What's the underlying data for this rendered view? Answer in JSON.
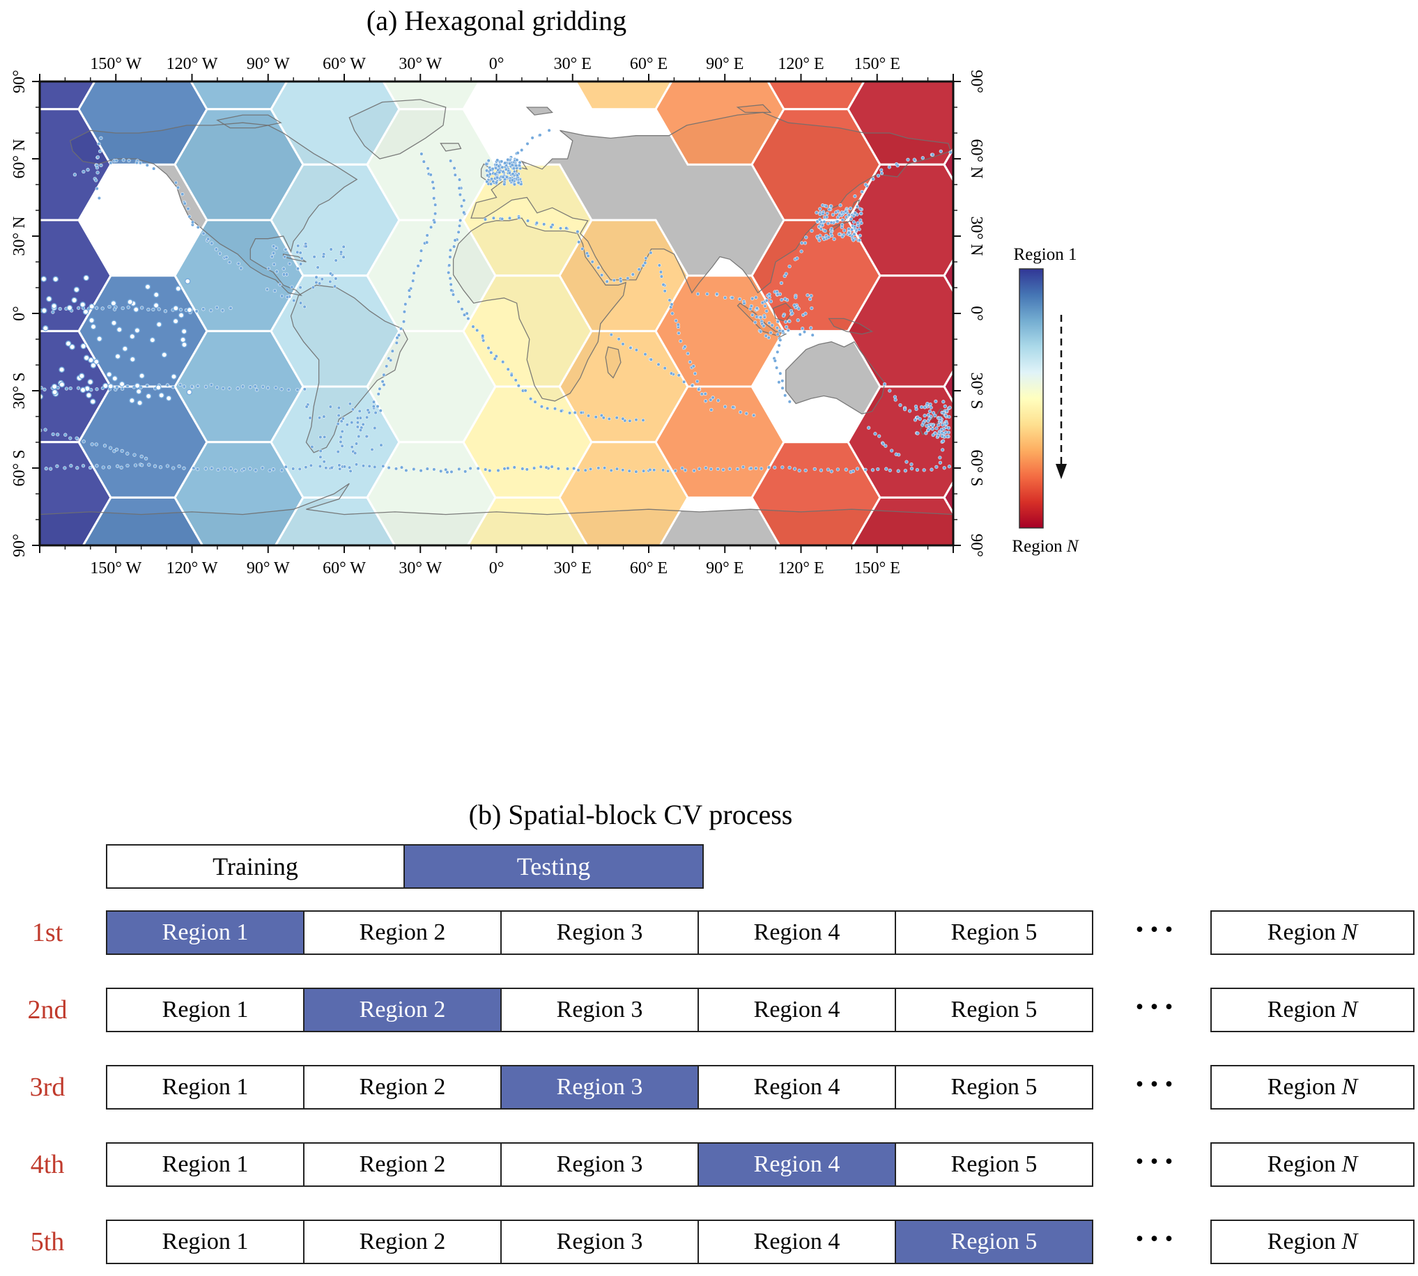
{
  "panel_a": {
    "title": "(a)  Hexagonal gridding",
    "lon_ticks": [
      "150° W",
      "120° W",
      "90° W",
      "60° W",
      "30° W",
      "0°",
      "30° E",
      "60° E",
      "90° E",
      "120° E",
      "150° E"
    ],
    "lat_ticks": [
      "90°",
      "60° N",
      "30° N",
      "0°",
      "30° S",
      "60° S",
      "90°"
    ],
    "colorbar": {
      "top_label": "Region 1",
      "bottom_prefix": "Region ",
      "bottom_symbol": "N",
      "stops": [
        "#313695",
        "#4575b4",
        "#74add1",
        "#abd9e9",
        "#e0f3f8",
        "#ffffbf",
        "#fee090",
        "#fdae61",
        "#f46d43",
        "#d73027",
        "#a50026"
      ]
    }
  },
  "panel_b": {
    "title": "(b)  Spatial-block CV process",
    "legend": {
      "training": "Training",
      "testing": "Testing"
    },
    "row_labels": [
      "1st",
      "2nd",
      "3rd",
      "4th",
      "5th"
    ],
    "regions": [
      "Region 1",
      "Region 2",
      "Region 3",
      "Region 4",
      "Region 5"
    ],
    "test_indices": [
      0,
      1,
      2,
      3,
      4
    ],
    "ellipsis": "···",
    "region_n_prefix": "Region ",
    "region_n_symbol": "N"
  },
  "colors": {
    "testing_blue": "#5a6bae",
    "row_label_red": "#c03a2c",
    "land_gray": "#bdbdbd",
    "coast_gray": "#6f6f6f",
    "dot_blue": "#74a9dc",
    "frame_black": "#111111"
  }
}
